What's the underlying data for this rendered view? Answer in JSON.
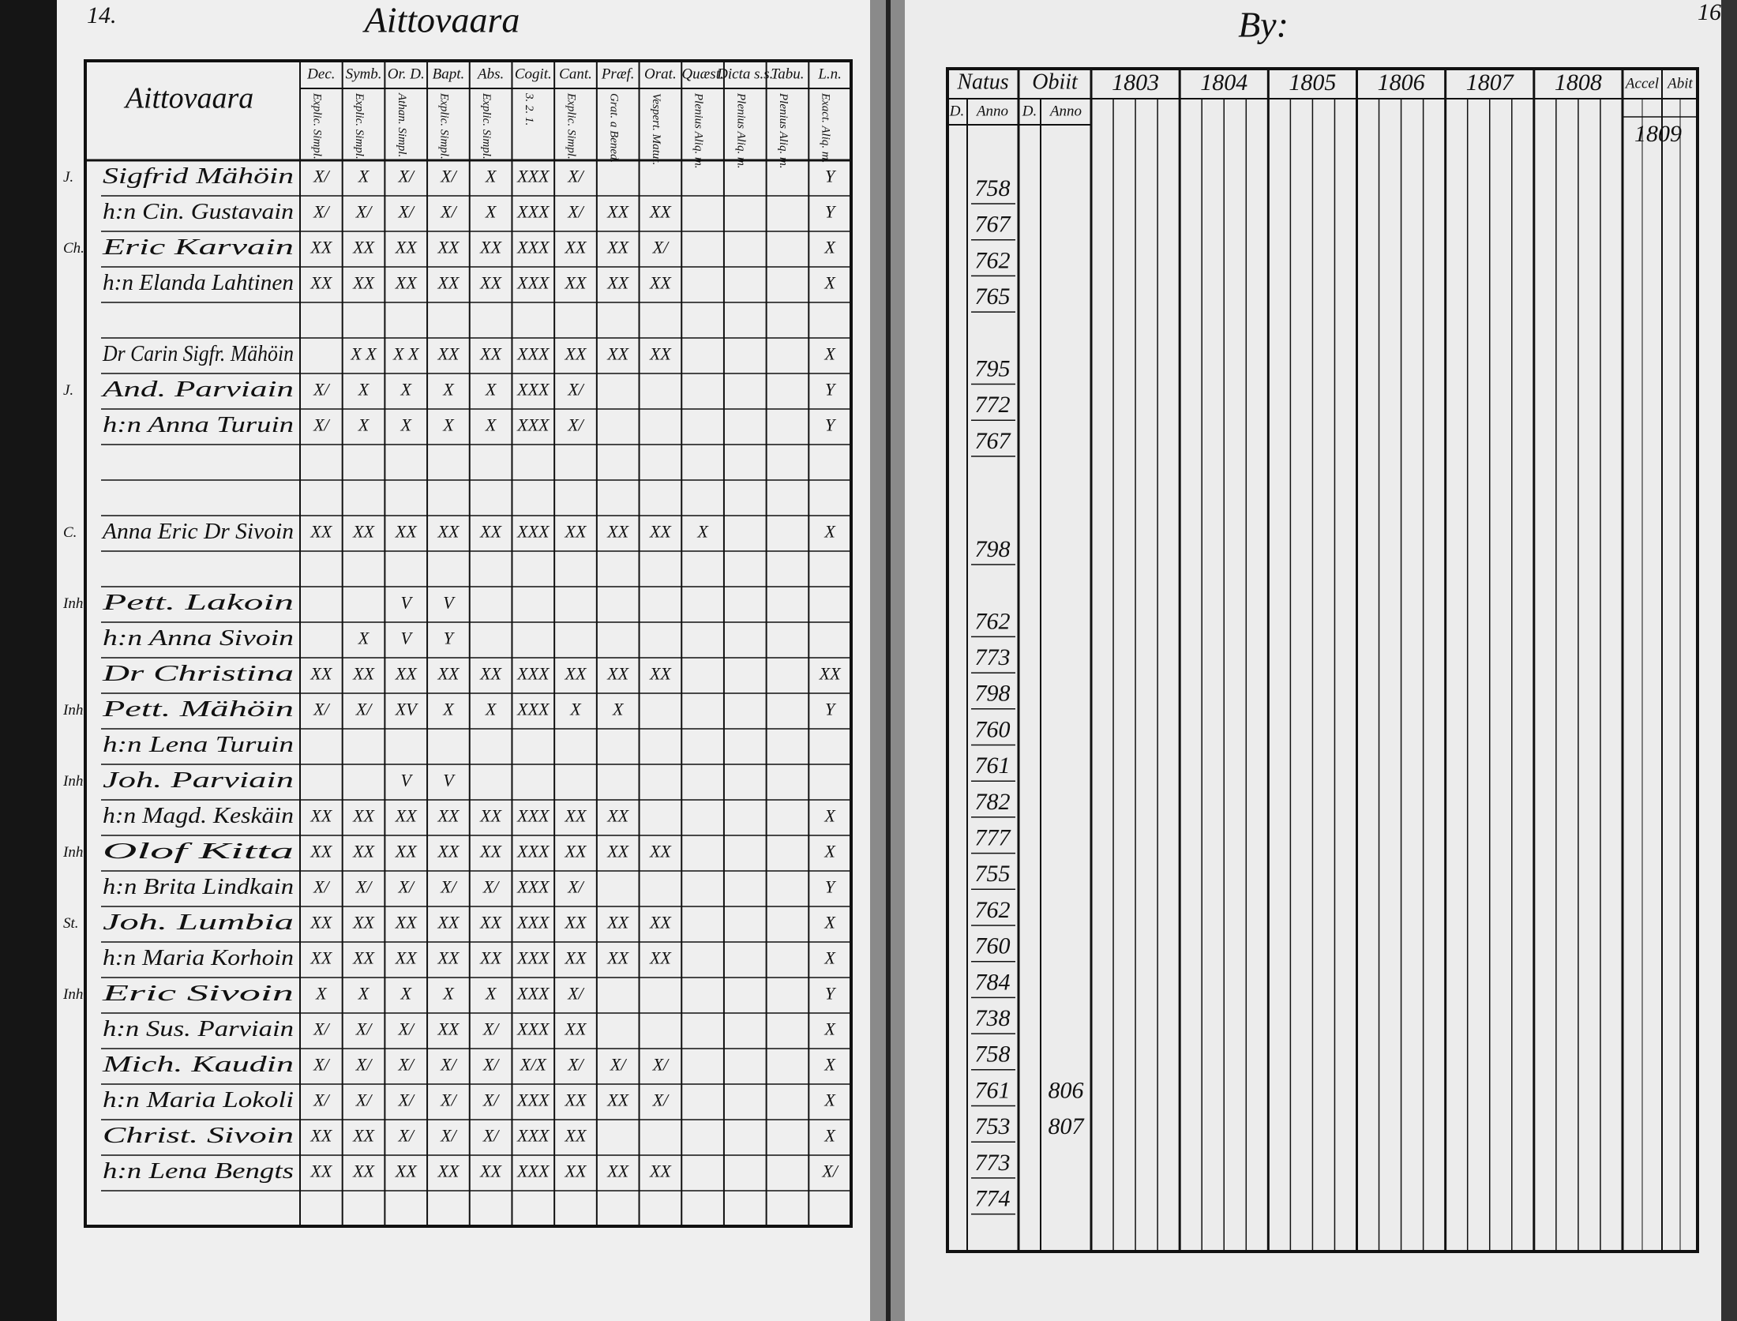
{
  "left_page": {
    "page_number": "14.",
    "title": "Aittovaara",
    "name_header": "Aittovaara",
    "columns": [
      {
        "top": "Dec.",
        "sub": "Explic. Simpl."
      },
      {
        "top": "Symb.",
        "sub": "Explic. Simpl."
      },
      {
        "top": "Or. D.",
        "sub": "Athan. Simpl."
      },
      {
        "top": "Bapt.",
        "sub": "Explic. Simpl."
      },
      {
        "top": "Abs.",
        "sub": "Explic. Simpl."
      },
      {
        "top": "Cogit.",
        "sub": "3. 2. 1."
      },
      {
        "top": "Cant.",
        "sub": "Explic. Simpl."
      },
      {
        "top": "Præf.",
        "sub": "Grat. a Bened."
      },
      {
        "top": "Orat.",
        "sub": "Vespert. Matut."
      },
      {
        "top": "Quæst.",
        "sub": "Plenius Aliq. m."
      },
      {
        "top": "Dicta s.s.",
        "sub": "Plenius Aliq. m."
      },
      {
        "top": "Tabu.",
        "sub": "Plenius Aliq. m."
      },
      {
        "top": "L.n.",
        "sub": "Exact. Aliq. m."
      }
    ],
    "rows": [
      {
        "prefix": "J.",
        "name": "Sigfrid Mähöin",
        "cells": [
          "X/",
          "X",
          "X/",
          "X/",
          "X",
          "XXX",
          "X/",
          null,
          null,
          null,
          null,
          null,
          "Y"
        ]
      },
      {
        "prefix": null,
        "name": "h:n Cin. Gustavain",
        "cells": [
          "X/",
          "X/",
          "X/",
          "X/",
          "X",
          "XXX",
          "X/",
          "XX",
          "XX",
          null,
          null,
          null,
          "Y"
        ]
      },
      {
        "prefix": "Ch.",
        "name": "Eric Karvain",
        "cells": [
          "XX",
          "XX",
          "XX",
          "XX",
          "XX",
          "XXX",
          "XX",
          "XX",
          "X/",
          null,
          null,
          null,
          "X"
        ]
      },
      {
        "prefix": null,
        "name": "h:n Elanda Lahtinen",
        "cells": [
          "XX",
          "XX",
          "XX",
          "XX",
          "XX",
          "XXX",
          "XX",
          "XX",
          "XX",
          null,
          null,
          null,
          "X"
        ]
      },
      {
        "prefix": null,
        "name": null,
        "cells": [
          null,
          null,
          null,
          null,
          null,
          null,
          null,
          null,
          null,
          null,
          null,
          null,
          null
        ]
      },
      {
        "prefix": null,
        "name": "Dr Carin Sigfr. Mähöin",
        "cells": [
          null,
          "X X",
          "X X",
          "XX",
          "XX",
          "XXX",
          "XX",
          "XX",
          "XX",
          null,
          null,
          null,
          "X"
        ]
      },
      {
        "prefix": "J.",
        "name": "And. Parviain",
        "cells": [
          "X/",
          "X",
          "X",
          "X",
          "X",
          "XXX",
          "X/",
          null,
          null,
          null,
          null,
          null,
          "Y"
        ]
      },
      {
        "prefix": null,
        "name": "h:n Anna Turuin",
        "cells": [
          "X/",
          "X",
          "X",
          "X",
          "X",
          "XXX",
          "X/",
          null,
          null,
          null,
          null,
          null,
          "Y"
        ]
      },
      {
        "prefix": null,
        "name": null,
        "cells": [
          null,
          null,
          null,
          null,
          null,
          null,
          null,
          null,
          null,
          null,
          null,
          null,
          null
        ]
      },
      {
        "prefix": null,
        "name": null,
        "cells": [
          null,
          null,
          null,
          null,
          null,
          null,
          null,
          null,
          null,
          null,
          null,
          null,
          null
        ]
      },
      {
        "prefix": "C.",
        "name": "Anna Eric Dr Sivoin",
        "cells": [
          "XX",
          "XX",
          "XX",
          "XX",
          "XX",
          "XXX",
          "XX",
          "XX",
          "XX",
          "X",
          null,
          null,
          "X"
        ]
      },
      {
        "prefix": null,
        "name": null,
        "cells": [
          null,
          null,
          null,
          null,
          null,
          null,
          null,
          null,
          null,
          null,
          null,
          null,
          null
        ]
      },
      {
        "prefix": "Inh",
        "name": "Pett. Lakoin",
        "cells": [
          null,
          null,
          "V",
          "V",
          null,
          null,
          null,
          null,
          null,
          null,
          null,
          null,
          null
        ]
      },
      {
        "prefix": null,
        "name": "h:n Anna Sivoin",
        "cells": [
          null,
          "X",
          "V",
          "Y",
          null,
          null,
          null,
          null,
          null,
          null,
          null,
          null,
          null
        ]
      },
      {
        "prefix": null,
        "name": "Dr Christina",
        "cells": [
          "XX",
          "XX",
          "XX",
          "XX",
          "XX",
          "XXX",
          "XX",
          "XX",
          "XX",
          null,
          null,
          null,
          "XX"
        ]
      },
      {
        "prefix": "Inh",
        "name": "Pett. Mähöin",
        "cells": [
          "X/",
          "X/",
          "XV",
          "X",
          "X",
          "XXX",
          "X",
          "X",
          null,
          null,
          null,
          null,
          "Y"
        ]
      },
      {
        "prefix": null,
        "name": "h:n Lena Turuin",
        "cells": [
          null,
          null,
          null,
          null,
          null,
          null,
          null,
          null,
          null,
          null,
          null,
          null,
          null
        ]
      },
      {
        "prefix": "Inh",
        "name": "Joh. Parviain",
        "cells": [
          null,
          null,
          "V",
          "V",
          null,
          null,
          null,
          null,
          null,
          null,
          null,
          null,
          null
        ]
      },
      {
        "prefix": null,
        "name": "h:n Magd. Keskäin",
        "cells": [
          "XX",
          "XX",
          "XX",
          "XX",
          "XX",
          "XXX",
          "XX",
          "XX",
          null,
          null,
          null,
          null,
          "X"
        ]
      },
      {
        "prefix": "Inh",
        "name": "Olof Kitta",
        "cells": [
          "XX",
          "XX",
          "XX",
          "XX",
          "XX",
          "XXX",
          "XX",
          "XX",
          "XX",
          null,
          null,
          null,
          "X"
        ]
      },
      {
        "prefix": null,
        "name": "h:n Brita Lindkain",
        "cells": [
          "X/",
          "X/",
          "X/",
          "X/",
          "X/",
          "XXX",
          "X/",
          null,
          null,
          null,
          null,
          null,
          "Y"
        ]
      },
      {
        "prefix": "St.",
        "name": "Joh. Lumbia",
        "cells": [
          "XX",
          "XX",
          "XX",
          "XX",
          "XX",
          "XXX",
          "XX",
          "XX",
          "XX",
          null,
          null,
          null,
          "X"
        ]
      },
      {
        "prefix": null,
        "name": "h:n Maria Korhoin",
        "cells": [
          "XX",
          "XX",
          "XX",
          "XX",
          "XX",
          "XXX",
          "XX",
          "XX",
          "XX",
          null,
          null,
          null,
          "X"
        ]
      },
      {
        "prefix": "Inh",
        "name": "Eric Sivoin",
        "cells": [
          "X",
          "X",
          "X",
          "X",
          "X",
          "XXX",
          "X/",
          null,
          null,
          null,
          null,
          null,
          "Y"
        ]
      },
      {
        "prefix": null,
        "name": "h:n Sus. Parviain",
        "cells": [
          "X/",
          "X/",
          "X/",
          "XX",
          "X/",
          "XXX",
          "XX",
          null,
          null,
          null,
          null,
          null,
          "X"
        ]
      },
      {
        "prefix": null,
        "name": "Mich. Kaudin",
        "cells": [
          "X/",
          "X/",
          "X/",
          "X/",
          "X/",
          "X/X",
          "X/",
          "X/",
          "X/",
          null,
          null,
          null,
          "X"
        ]
      },
      {
        "prefix": null,
        "name": "h:n Maria Lokoli",
        "cells": [
          "X/",
          "X/",
          "X/",
          "X/",
          "X/",
          "XXX",
          "XX",
          "XX",
          "X/",
          null,
          null,
          null,
          "X"
        ]
      },
      {
        "prefix": null,
        "name": "Christ. Sivoin",
        "cells": [
          "XX",
          "XX",
          "X/",
          "X/",
          "X/",
          "XXX",
          "XX",
          null,
          null,
          null,
          null,
          null,
          "X"
        ]
      },
      {
        "prefix": null,
        "name": "h:n Lena Bengts",
        "cells": [
          "XX",
          "XX",
          "XX",
          "XX",
          "XX",
          "XXX",
          "XX",
          "XX",
          "XX",
          null,
          null,
          null,
          "X/"
        ]
      }
    ]
  },
  "right_page": {
    "title": "By:",
    "page_number": "16",
    "natus": "Natus",
    "obiit": "Obiit",
    "day": "D.",
    "anno": "Anno",
    "years": [
      "1803",
      "1804",
      "1805",
      "1806",
      "1807",
      "1808"
    ],
    "accel": "Accel",
    "abit": "Abit",
    "note": "1809",
    "rows": [
      {
        "born": "758",
        "died": null
      },
      {
        "born": "767",
        "died": null
      },
      {
        "born": "762",
        "died": null
      },
      {
        "born": "765",
        "died": null
      },
      {
        "born": null,
        "died": null
      },
      {
        "born": "795",
        "died": null
      },
      {
        "born": "772",
        "died": null
      },
      {
        "born": "767",
        "died": null
      },
      {
        "born": null,
        "died": null
      },
      {
        "born": null,
        "died": null
      },
      {
        "born": "798",
        "died": null
      },
      {
        "born": null,
        "died": null
      },
      {
        "born": "762",
        "died": null
      },
      {
        "born": "773",
        "died": null
      },
      {
        "born": "798",
        "died": null
      },
      {
        "born": "760",
        "died": null
      },
      {
        "born": "761",
        "died": null
      },
      {
        "born": "782",
        "died": null
      },
      {
        "born": "777",
        "died": null
      },
      {
        "born": "755",
        "died": null
      },
      {
        "born": "762",
        "died": null
      },
      {
        "born": "760",
        "died": null
      },
      {
        "born": "784",
        "died": null
      },
      {
        "born": "738",
        "died": null
      },
      {
        "born": "758",
        "died": null
      },
      {
        "born": "761",
        "died": "806"
      },
      {
        "born": "753",
        "died": "807"
      },
      {
        "born": "773",
        "died": null
      },
      {
        "born": "774",
        "died": null
      }
    ]
  }
}
